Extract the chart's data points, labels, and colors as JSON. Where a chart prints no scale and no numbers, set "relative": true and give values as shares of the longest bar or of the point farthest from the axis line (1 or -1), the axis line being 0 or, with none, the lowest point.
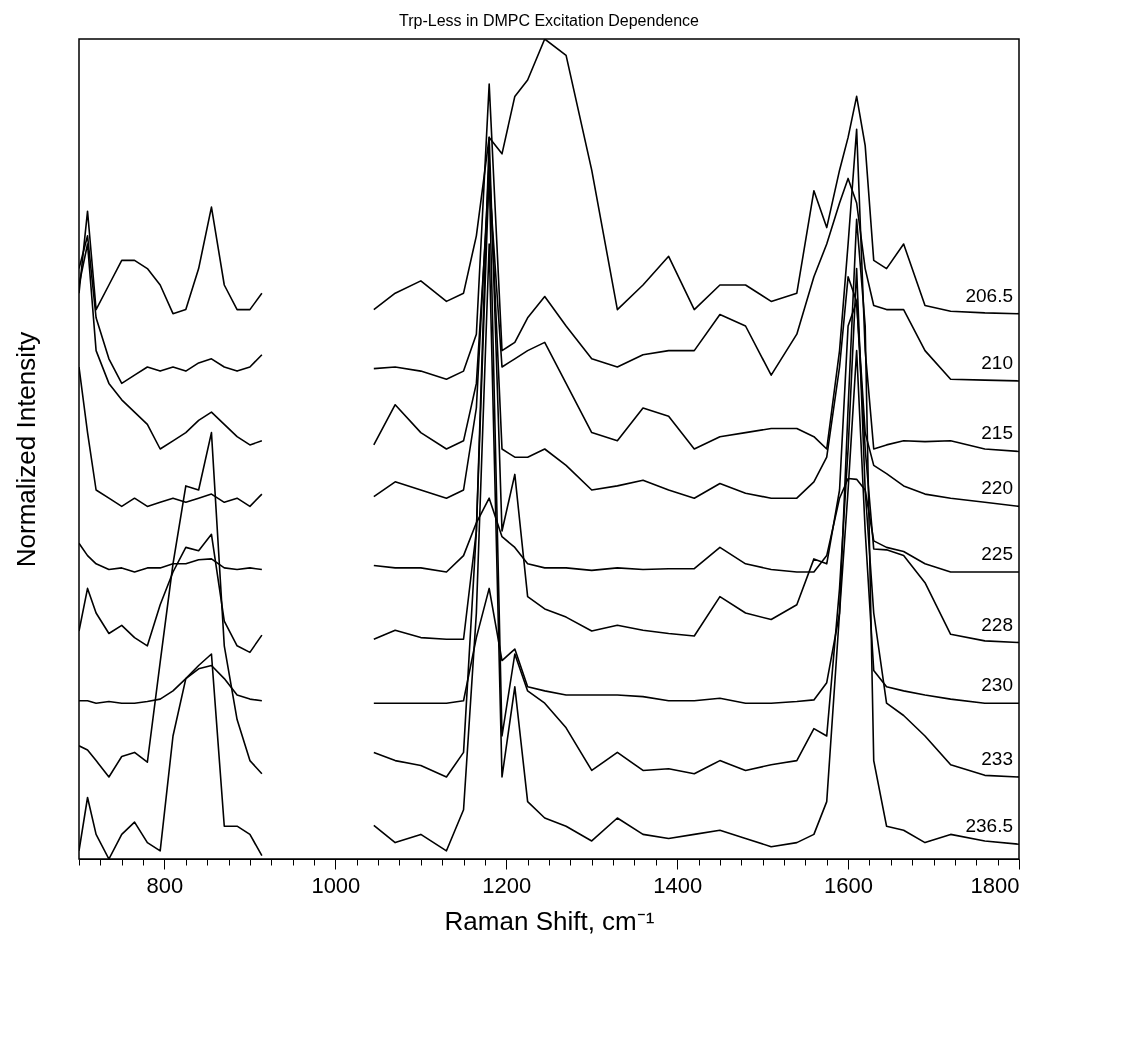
{
  "chart_data": {
    "type": "line",
    "title": "Trp-Less in DMPC Excitation Dependence",
    "xlabel": "Raman Shift, cm⁻¹",
    "ylabel": "Normalized Intensity",
    "relative": true,
    "xlim": [
      700,
      1800
    ],
    "xticks": [
      {
        "value": 700,
        "label": null
      },
      {
        "value": 725,
        "label": null
      },
      {
        "value": 750,
        "label": null
      },
      {
        "value": 775,
        "label": null
      },
      800,
      {
        "value": 825,
        "label": null
      },
      {
        "value": 850,
        "label": null
      },
      {
        "value": 875,
        "label": null
      },
      {
        "value": 900,
        "label": null
      },
      {
        "value": 925,
        "label": null
      },
      {
        "value": 950,
        "label": null
      },
      {
        "value": 975,
        "label": null
      },
      1000,
      {
        "value": 1025,
        "label": null
      },
      {
        "value": 1050,
        "label": null
      },
      {
        "value": 1075,
        "label": null
      },
      {
        "value": 1100,
        "label": null
      },
      {
        "value": 1125,
        "label": null
      },
      {
        "value": 1150,
        "label": null
      },
      {
        "value": 1175,
        "label": null
      },
      1200,
      {
        "value": 1225,
        "label": null
      },
      {
        "value": 1250,
        "label": null
      },
      {
        "value": 1275,
        "label": null
      },
      {
        "value": 1300,
        "label": null
      },
      {
        "value": 1325,
        "label": null
      },
      {
        "value": 1350,
        "label": null
      },
      {
        "value": 1375,
        "label": null
      },
      1400,
      {
        "value": 1425,
        "label": null
      },
      {
        "value": 1450,
        "label": null
      },
      {
        "value": 1475,
        "label": null
      },
      {
        "value": 1500,
        "label": null
      },
      {
        "value": 1525,
        "label": null
      },
      {
        "value": 1550,
        "label": null
      },
      {
        "value": 1575,
        "label": null
      },
      1600,
      {
        "value": 1625,
        "label": null
      },
      {
        "value": 1650,
        "label": null
      },
      {
        "value": 1675,
        "label": null
      },
      {
        "value": 1700,
        "label": null
      },
      {
        "value": 1725,
        "label": null
      },
      {
        "value": 1750,
        "label": null
      },
      {
        "value": 1775,
        "label": null
      },
      1800
    ],
    "x": [
      700,
      710,
      720,
      735,
      750,
      765,
      780,
      795,
      810,
      825,
      840,
      855,
      870,
      885,
      900,
      914,
      980,
      1045,
      1070,
      1100,
      1130,
      1150,
      1165,
      1180,
      1195,
      1210,
      1225,
      1245,
      1270,
      1300,
      1330,
      1360,
      1390,
      1420,
      1450,
      1480,
      1510,
      1540,
      1560,
      1575,
      1590,
      1600,
      1610,
      1620,
      1630,
      1645,
      1665,
      1690,
      1720,
      1760,
      1800
    ],
    "series": [
      {
        "name": "206.5",
        "color": "#000000",
        "values": [
          0.69,
          0.79,
          0.67,
          0.7,
          0.73,
          0.73,
          0.72,
          0.7,
          0.665,
          0.67,
          0.72,
          0.795,
          0.7,
          0.67,
          0.67,
          0.69,
          null,
          0.67,
          0.69,
          0.705,
          0.68,
          0.69,
          0.76,
          0.88,
          0.86,
          0.93,
          0.95,
          1,
          0.98,
          0.84,
          0.67,
          0.7,
          0.735,
          0.67,
          0.7,
          0.7,
          0.68,
          0.69,
          0.815,
          0.77,
          0.84,
          0.88,
          0.93,
          0.87,
          0.73,
          0.72,
          0.75,
          0.675,
          0.668,
          0.666,
          0.665
        ]
      },
      {
        "name": "210",
        "color": "#000000",
        "values": [
          0.72,
          0.76,
          0.66,
          0.61,
          0.58,
          0.59,
          0.6,
          0.595,
          0.6,
          0.595,
          0.605,
          0.61,
          0.6,
          0.595,
          0.6,
          0.615,
          null,
          0.598,
          0.6,
          0.595,
          0.585,
          0.595,
          0.64,
          0.945,
          0.62,
          0.63,
          0.66,
          0.686,
          0.65,
          0.61,
          0.6,
          0.615,
          0.62,
          0.62,
          0.664,
          0.65,
          0.59,
          0.64,
          0.71,
          0.75,
          0.8,
          0.83,
          0.8,
          0.72,
          0.675,
          0.67,
          0.67,
          0.62,
          0.585,
          0.584,
          0.583
        ]
      },
      {
        "name": "215",
        "color": "#000000",
        "values": [
          0.7,
          0.75,
          0.62,
          0.58,
          0.56,
          0.545,
          0.53,
          0.5,
          0.51,
          0.52,
          0.535,
          0.545,
          0.53,
          0.515,
          0.505,
          0.51,
          null,
          0.505,
          0.554,
          0.52,
          0.5,
          0.51,
          0.58,
          0.83,
          0.6,
          0.61,
          0.62,
          0.63,
          0.58,
          0.52,
          0.51,
          0.55,
          0.54,
          0.5,
          0.515,
          0.52,
          0.525,
          0.525,
          0.515,
          0.5,
          0.62,
          0.75,
          0.89,
          0.62,
          0.5,
          0.505,
          0.51,
          0.509,
          0.51,
          0.5,
          0.497
        ]
      },
      {
        "name": "220",
        "color": "#000000",
        "values": [
          0.6,
          0.52,
          0.45,
          0.44,
          0.43,
          0.44,
          0.43,
          0.435,
          0.44,
          0.435,
          0.44,
          0.445,
          0.435,
          0.44,
          0.43,
          0.445,
          null,
          0.442,
          0.46,
          0.45,
          0.44,
          0.45,
          0.55,
          0.85,
          0.5,
          0.49,
          0.49,
          0.5,
          0.48,
          0.45,
          0.455,
          0.462,
          0.45,
          0.44,
          0.458,
          0.446,
          0.44,
          0.44,
          0.46,
          0.49,
          0.6,
          0.71,
          0.68,
          0.52,
          0.48,
          0.47,
          0.455,
          0.445,
          0.44,
          0.435,
          0.43
        ]
      },
      {
        "name": "225",
        "color": "#000000",
        "values": [
          0.385,
          0.37,
          0.36,
          0.353,
          0.355,
          0.35,
          0.355,
          0.355,
          0.36,
          0.36,
          0.365,
          0.366,
          0.355,
          0.353,
          0.355,
          0.353,
          null,
          0.358,
          0.355,
          0.355,
          0.35,
          0.37,
          0.41,
          0.44,
          0.393,
          0.38,
          0.36,
          0.355,
          0.355,
          0.352,
          0.355,
          0.353,
          0.354,
          0.354,
          0.38,
          0.36,
          0.353,
          0.35,
          0.35,
          0.37,
          0.44,
          0.464,
          0.463,
          0.45,
          0.388,
          0.38,
          0.375,
          0.36,
          0.35,
          0.35,
          0.35
        ]
      },
      {
        "name": "228",
        "color": "#000000",
        "values": [
          0.278,
          0.33,
          0.3,
          0.275,
          0.285,
          0.27,
          0.26,
          0.31,
          0.35,
          0.38,
          0.376,
          0.396,
          0.29,
          0.26,
          0.252,
          0.273,
          null,
          0.268,
          0.279,
          0.27,
          0.268,
          0.268,
          0.4,
          0.88,
          0.4,
          0.469,
          0.32,
          0.305,
          0.295,
          0.278,
          0.285,
          0.279,
          0.275,
          0.272,
          0.32,
          0.3,
          0.292,
          0.31,
          0.366,
          0.36,
          0.45,
          0.65,
          0.68,
          0.5,
          0.378,
          0.377,
          0.37,
          0.337,
          0.274,
          0.266,
          0.264
        ]
      },
      {
        "name": "230",
        "color": "#000000",
        "values": [
          0.193,
          0.193,
          0.19,
          0.192,
          0.19,
          0.19,
          0.192,
          0.195,
          0.205,
          0.22,
          0.232,
          0.236,
          0.22,
          0.2,
          0.195,
          0.193,
          null,
          0.19,
          0.19,
          0.19,
          0.19,
          0.193,
          0.27,
          0.33,
          0.242,
          0.256,
          0.21,
          0.205,
          0.2,
          0.2,
          0.2,
          0.198,
          0.193,
          0.193,
          0.196,
          0.19,
          0.19,
          0.192,
          0.194,
          0.215,
          0.3,
          0.45,
          0.62,
          0.4,
          0.23,
          0.21,
          0.205,
          0.2,
          0.195,
          0.19,
          0.19
        ]
      },
      {
        "name": "233",
        "color": "#000000",
        "values": [
          0.138,
          0.133,
          0.12,
          0.1,
          0.125,
          0.13,
          0.118,
          0.24,
          0.36,
          0.455,
          0.45,
          0.52,
          0.26,
          0.17,
          0.12,
          0.104,
          null,
          0.13,
          0.12,
          0.114,
          0.1,
          0.13,
          0.4,
          0.84,
          0.15,
          0.25,
          0.205,
          0.19,
          0.16,
          0.108,
          0.13,
          0.108,
          0.11,
          0.104,
          0.12,
          0.108,
          0.115,
          0.12,
          0.159,
          0.15,
          0.33,
          0.5,
          0.72,
          0.45,
          0.3,
          0.19,
          0.175,
          0.15,
          0.115,
          0.102,
          0.1
        ]
      },
      {
        "name": "236.5",
        "color": "#000000",
        "values": [
          0.01,
          0.075,
          0.03,
          0.0,
          0.03,
          0.045,
          0.02,
          0.01,
          0.15,
          0.22,
          0.236,
          0.25,
          0.04,
          0.04,
          0.03,
          0.004,
          null,
          0.041,
          0.02,
          0.03,
          0.01,
          0.06,
          0.3,
          0.75,
          0.1,
          0.21,
          0.07,
          0.05,
          0.04,
          0.022,
          0.05,
          0.03,
          0.025,
          0.03,
          0.035,
          0.025,
          0.015,
          0.02,
          0.03,
          0.07,
          0.3,
          0.55,
          0.78,
          0.65,
          0.12,
          0.04,
          0.035,
          0.02,
          0.03,
          0.022,
          0.018
        ]
      }
    ]
  }
}
